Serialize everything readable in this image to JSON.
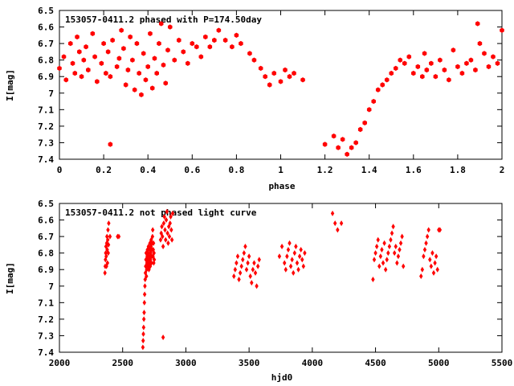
{
  "chart_data": [
    {
      "type": "scatter",
      "title": "153057-0411.2 phased with P=174.50day",
      "xlabel": "phase",
      "ylabel": "I[mag]",
      "xlim": [
        0,
        2
      ],
      "ylim": [
        7.4,
        6.5
      ],
      "y_inverted": true,
      "xticks": [
        "0",
        "0.2",
        "0.4",
        "0.6",
        "0.8",
        "1",
        "1.2",
        "1.4",
        "1.6",
        "1.8",
        "2"
      ],
      "yticks": [
        "6.5",
        "6.6",
        "6.7",
        "6.8",
        "6.9",
        "7",
        "7.1",
        "7.2",
        "7.3",
        "7.4"
      ],
      "grid": false,
      "marker": "filled-hexagon",
      "series": [
        {
          "color": "#ff0000",
          "x": [
            0.0,
            0.02,
            0.03,
            0.05,
            0.06,
            0.07,
            0.08,
            0.09,
            0.1,
            0.11,
            0.12,
            0.13,
            0.15,
            0.16,
            0.17,
            0.19,
            0.2,
            0.21,
            0.22,
            0.23,
            0.24,
            0.26,
            0.27,
            0.28,
            0.29,
            0.3,
            0.31,
            0.32,
            0.33,
            0.34,
            0.35,
            0.36,
            0.37,
            0.38,
            0.39,
            0.4,
            0.41,
            0.42,
            0.43,
            0.44,
            0.45,
            0.46,
            0.47,
            0.48,
            0.49,
            0.5,
            0.52,
            0.54,
            0.56,
            0.58,
            0.6,
            0.62,
            0.64,
            0.66,
            0.68,
            0.7,
            0.72,
            0.75,
            0.78,
            0.8,
            0.82,
            0.86,
            0.88,
            0.91,
            0.93,
            0.95,
            0.97,
            1.0,
            1.02,
            1.04,
            1.06,
            1.1,
            0.23,
            1.2,
            1.24,
            1.26,
            1.28,
            1.3,
            1.32,
            1.34,
            1.36,
            1.38,
            1.4,
            1.42,
            1.44,
            1.46,
            1.48,
            1.5,
            1.52,
            1.54,
            1.56,
            1.58,
            1.6,
            1.62,
            1.64,
            1.65,
            1.66,
            1.68,
            1.7,
            1.72,
            1.74,
            1.76,
            1.78,
            1.8,
            1.82,
            1.84,
            1.86,
            1.88,
            1.89,
            1.9,
            1.92,
            1.94,
            1.96,
            1.98,
            2.0
          ],
          "y": [
            6.85,
            6.78,
            6.92,
            6.7,
            6.82,
            6.88,
            6.66,
            6.75,
            6.9,
            6.8,
            6.72,
            6.86,
            6.64,
            6.78,
            6.93,
            6.82,
            6.7,
            6.88,
            6.75,
            6.9,
            6.68,
            6.84,
            6.79,
            6.62,
            6.73,
            6.95,
            6.86,
            6.66,
            6.8,
            6.98,
            6.7,
            6.88,
            7.01,
            6.76,
            6.92,
            6.84,
            6.64,
            6.97,
            6.79,
            6.88,
            6.7,
            6.58,
            6.83,
            6.94,
            6.74,
            6.6,
            6.8,
            6.68,
            6.75,
            6.82,
            6.7,
            6.72,
            6.78,
            6.66,
            6.72,
            6.68,
            6.62,
            6.68,
            6.72,
            6.65,
            6.7,
            6.76,
            6.8,
            6.85,
            6.9,
            6.95,
            6.88,
            6.93,
            6.86,
            6.9,
            6.88,
            6.92,
            7.31,
            7.31,
            7.26,
            7.33,
            7.28,
            7.37,
            7.33,
            7.3,
            7.22,
            7.18,
            7.1,
            7.05,
            6.98,
            6.95,
            6.92,
            6.88,
            6.85,
            6.8,
            6.82,
            6.78,
            6.88,
            6.84,
            6.9,
            6.76,
            6.86,
            6.82,
            6.9,
            6.8,
            6.86,
            6.92,
            6.74,
            6.84,
            6.88,
            6.82,
            6.8,
            6.86,
            6.58,
            6.7,
            6.76,
            6.84,
            6.78,
            6.82,
            6.62
          ]
        }
      ]
    },
    {
      "type": "scatter",
      "title": "153057-0411.2 not phased light curve",
      "xlabel": "hjd0",
      "ylabel": "I[mag]",
      "xlim": [
        2000,
        5500
      ],
      "ylim": [
        7.4,
        6.5
      ],
      "y_inverted": true,
      "xticks": [
        "2000",
        "2500",
        "3000",
        "3500",
        "4000",
        "4500",
        "5000",
        "5500"
      ],
      "yticks": [
        "6.5",
        "6.6",
        "6.7",
        "6.8",
        "6.9",
        "7",
        "7.1",
        "7.2",
        "7.3",
        "7.4"
      ],
      "grid": false,
      "marker": "filled-diamond",
      "series": [
        {
          "color": "#ff0000",
          "x": [
            2360,
            2362,
            2364,
            2366,
            2368,
            2370,
            2372,
            2374,
            2376,
            2378,
            2380,
            2382,
            2384,
            2386,
            2388,
            2390,
            2400,
            2460,
            2470,
            2660,
            2662,
            2664,
            2666,
            2668,
            2670,
            2672,
            2674,
            2676,
            2678,
            2680,
            2682,
            2684,
            2686,
            2688,
            2690,
            2692,
            2694,
            2696,
            2698,
            2700,
            2702,
            2704,
            2706,
            2708,
            2710,
            2712,
            2714,
            2716,
            2718,
            2720,
            2722,
            2724,
            2726,
            2728,
            2730,
            2732,
            2734,
            2736,
            2738,
            2740,
            2742,
            2744,
            2746,
            2748,
            2750,
            2800,
            2805,
            2810,
            2815,
            2820,
            2825,
            2830,
            2835,
            2840,
            2845,
            2850,
            2855,
            2860,
            2865,
            2870,
            2875,
            2880,
            2885,
            2890,
            2895,
            2820,
            3380,
            3390,
            3400,
            3410,
            3420,
            3430,
            3440,
            3450,
            3460,
            3470,
            3480,
            3490,
            3500,
            3510,
            3520,
            3530,
            3540,
            3550,
            3560,
            3570,
            3580,
            3740,
            3760,
            3780,
            3790,
            3800,
            3810,
            3820,
            3830,
            3840,
            3850,
            3860,
            3870,
            3880,
            3890,
            3900,
            3910,
            3920,
            3930,
            3940,
            4160,
            4180,
            4200,
            4230,
            4480,
            4490,
            4500,
            4510,
            4520,
            4530,
            4540,
            4550,
            4560,
            4570,
            4580,
            4590,
            4600,
            4610,
            4620,
            4630,
            4640,
            4650,
            4660,
            4670,
            4680,
            4690,
            4700,
            4710,
            4720,
            4860,
            4870,
            4880,
            4890,
            4900,
            4910,
            4920,
            4930,
            4940,
            4950,
            4960,
            4970,
            4980,
            4990,
            5000,
            5010
          ],
          "y": [
            6.92,
            6.88,
            6.84,
            6.8,
            6.76,
            6.82,
            6.88,
            6.74,
            6.7,
            6.78,
            6.86,
            6.72,
            6.66,
            6.8,
            6.75,
            6.62,
            6.7,
            6.7,
            6.7,
            7.37,
            7.33,
            7.29,
            7.25,
            7.2,
            7.16,
            7.1,
            7.05,
            7.0,
            6.96,
            6.92,
            6.88,
            6.84,
            6.8,
            6.94,
            6.9,
            6.86,
            6.82,
            6.78,
            6.84,
            6.88,
            6.8,
            6.76,
            6.84,
            6.9,
            6.86,
            6.82,
            6.78,
            6.74,
            6.88,
            6.84,
            6.8,
            6.76,
            6.72,
            6.86,
            6.82,
            6.78,
            6.74,
            6.7,
            6.66,
            6.82,
            6.78,
            6.74,
            6.86,
            6.8,
            6.84,
            6.72,
            6.68,
            6.64,
            6.7,
            6.76,
            6.62,
            6.58,
            6.66,
            6.72,
            6.6,
            6.55,
            6.68,
            6.74,
            6.64,
            6.7,
            6.62,
            6.58,
            6.66,
            6.72,
            6.56,
            7.31,
            6.94,
            6.9,
            6.86,
            6.82,
            6.96,
            6.92,
            6.88,
            6.84,
            6.8,
            6.76,
            6.9,
            6.86,
            6.82,
            6.94,
            6.98,
            6.9,
            6.86,
            6.92,
            7.0,
            6.88,
            6.84,
            6.82,
            6.76,
            6.86,
            6.9,
            6.82,
            6.78,
            6.74,
            6.88,
            6.84,
            6.92,
            6.8,
            6.76,
            6.86,
            6.9,
            6.82,
            6.78,
            6.84,
            6.88,
            6.8,
            6.56,
            6.62,
            6.66,
            6.62,
            6.96,
            6.84,
            6.8,
            6.76,
            6.72,
            6.88,
            6.82,
            6.78,
            6.86,
            6.74,
            6.9,
            6.84,
            6.8,
            6.76,
            6.72,
            6.68,
            6.64,
            6.8,
            6.76,
            6.86,
            6.82,
            6.78,
            6.74,
            6.7,
            6.88,
            6.94,
            6.9,
            6.82,
            6.78,
            6.74,
            6.7,
            6.66,
            6.84,
            6.88,
            6.8,
            6.92,
            6.86,
            6.82,
            6.9,
            6.66,
            6.66
          ]
        }
      ]
    }
  ]
}
